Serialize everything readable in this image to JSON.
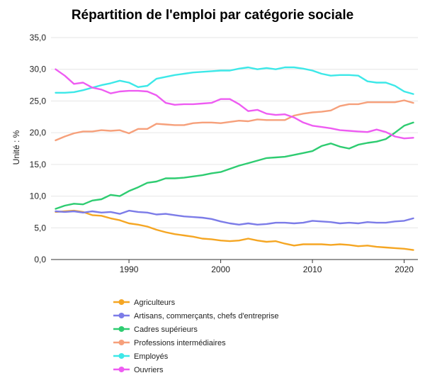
{
  "chart_data": {
    "type": "line",
    "title": "Répartition de l'emploi par catégorie sociale",
    "ylabel": "Unité : %",
    "xlabel": "",
    "xlim": [
      1981.5,
      2021.5
    ],
    "ylim": [
      0,
      35
    ],
    "x_ticks": [
      1990,
      2000,
      2010,
      2020
    ],
    "y_ticks": [
      "0,0",
      "5,0",
      "10,0",
      "15,0",
      "20,0",
      "25,0",
      "30,0",
      "35,0"
    ],
    "grid": "horizontal",
    "legend_position": "bottom",
    "x": [
      1982,
      1983,
      1984,
      1985,
      1986,
      1987,
      1988,
      1989,
      1990,
      1991,
      1992,
      1993,
      1994,
      1995,
      1996,
      1997,
      1998,
      1999,
      2000,
      2001,
      2002,
      2003,
      2004,
      2005,
      2006,
      2007,
      2008,
      2009,
      2010,
      2011,
      2012,
      2013,
      2014,
      2015,
      2016,
      2017,
      2018,
      2019,
      2020,
      2021
    ],
    "series": [
      {
        "name": "Agriculteurs",
        "color": "#f5a623",
        "values": [
          7.5,
          7.6,
          7.7,
          7.5,
          7.0,
          6.9,
          6.5,
          6.2,
          5.7,
          5.5,
          5.2,
          4.7,
          4.3,
          4.0,
          3.8,
          3.6,
          3.3,
          3.2,
          3.0,
          2.9,
          3.0,
          3.3,
          3.0,
          2.8,
          2.9,
          2.5,
          2.2,
          2.4,
          2.4,
          2.4,
          2.3,
          2.4,
          2.3,
          2.1,
          2.2,
          2.0,
          1.9,
          1.8,
          1.7,
          1.5
        ]
      },
      {
        "name": "Artisans, commerçants, chefs d'entreprise",
        "color": "#7c7ce8",
        "values": [
          7.6,
          7.5,
          7.6,
          7.4,
          7.6,
          7.4,
          7.5,
          7.2,
          7.7,
          7.5,
          7.4,
          7.1,
          7.2,
          7.0,
          6.8,
          6.7,
          6.6,
          6.4,
          6.0,
          5.7,
          5.5,
          5.7,
          5.5,
          5.6,
          5.8,
          5.8,
          5.7,
          5.8,
          6.1,
          6.0,
          5.9,
          5.7,
          5.8,
          5.7,
          5.9,
          5.8,
          5.8,
          6.0,
          6.1,
          6.5
        ]
      },
      {
        "name": "Cadres supérieurs",
        "color": "#2ecc71",
        "values": [
          8.0,
          8.5,
          8.8,
          8.7,
          9.3,
          9.5,
          10.2,
          10.0,
          10.8,
          11.4,
          12.1,
          12.3,
          12.8,
          12.8,
          12.9,
          13.1,
          13.3,
          13.6,
          13.8,
          14.3,
          14.8,
          15.2,
          15.6,
          16.0,
          16.1,
          16.2,
          16.5,
          16.8,
          17.1,
          17.9,
          18.3,
          17.8,
          17.5,
          18.1,
          18.4,
          18.6,
          19.0,
          20.0,
          21.1,
          21.6
        ]
      },
      {
        "name": "Professions intermédiaires",
        "color": "#f6a07b",
        "values": [
          18.8,
          19.4,
          19.9,
          20.2,
          20.2,
          20.4,
          20.3,
          20.4,
          19.9,
          20.6,
          20.6,
          21.4,
          21.3,
          21.2,
          21.2,
          21.5,
          21.6,
          21.6,
          21.5,
          21.7,
          21.9,
          21.8,
          22.1,
          22.0,
          22.0,
          22.0,
          22.7,
          23.0,
          23.2,
          23.3,
          23.5,
          24.2,
          24.5,
          24.5,
          24.8,
          24.8,
          24.8,
          24.8,
          25.1,
          24.7
        ]
      },
      {
        "name": "Employés",
        "color": "#3de8e8",
        "values": [
          26.3,
          26.3,
          26.4,
          26.7,
          27.1,
          27.5,
          27.8,
          28.2,
          27.9,
          27.2,
          27.4,
          28.5,
          28.8,
          29.1,
          29.3,
          29.5,
          29.6,
          29.7,
          29.8,
          29.8,
          30.1,
          30.3,
          30.0,
          30.2,
          30.0,
          30.3,
          30.3,
          30.1,
          29.8,
          29.3,
          29.0,
          29.1,
          29.1,
          29.0,
          28.1,
          27.9,
          27.9,
          27.4,
          26.5,
          26.1
        ]
      },
      {
        "name": "Ouvriers",
        "color": "#ee5cf2",
        "values": [
          30.0,
          29.0,
          27.7,
          27.9,
          27.1,
          26.8,
          26.2,
          26.5,
          26.6,
          26.6,
          26.5,
          25.9,
          24.7,
          24.4,
          24.5,
          24.5,
          24.6,
          24.7,
          25.3,
          25.3,
          24.5,
          23.4,
          23.6,
          23.0,
          22.8,
          22.9,
          22.4,
          21.6,
          21.1,
          20.9,
          20.7,
          20.4,
          20.3,
          20.2,
          20.1,
          20.5,
          20.1,
          19.4,
          19.1,
          19.2
        ]
      }
    ]
  }
}
